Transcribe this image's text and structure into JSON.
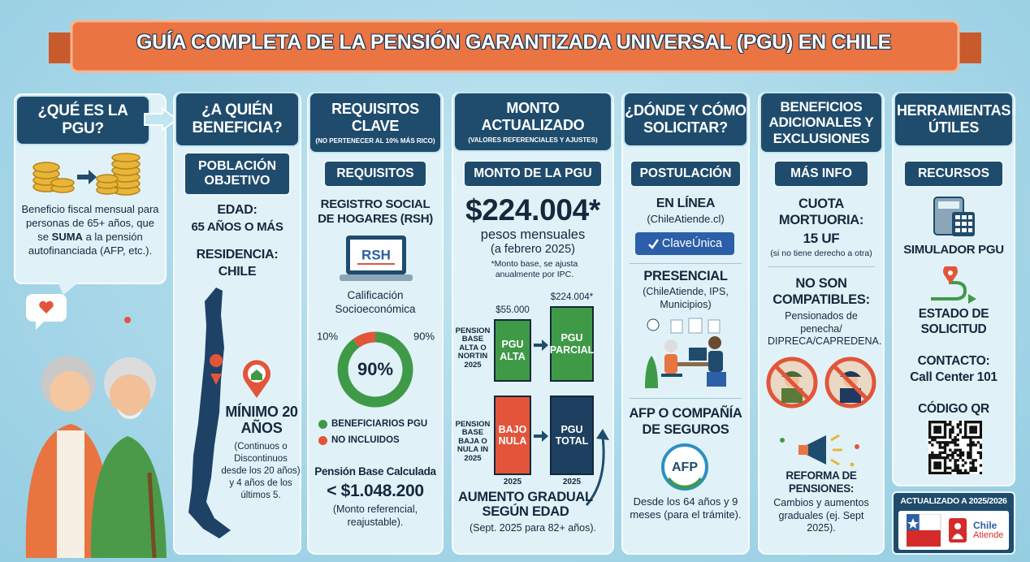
{
  "title": "GUÍA COMPLETA DE LA PENSIÓN GARANTIZADA UNIVERSAL (PGU) EN CHILE",
  "que_es": {
    "header": "¿QUÉ ES LA PGU?",
    "text_before": "Beneficio fiscal mensual para personas de 65+ años, que se",
    "text_emphasis": "SUMA",
    "text_after": "a la pensión autofinanciada (AFP, etc.)."
  },
  "a_quien": {
    "header": "¿A QUIÉN BENEFICIA?",
    "subheader": "POBLACIÓN OBJETIVO",
    "edad_label": "EDAD:",
    "edad_value": "65 AÑOS O MÁS",
    "residencia_label": "RESIDENCIA:",
    "residencia_value": "CHILE",
    "minimo": "MÍNIMO 20 AÑOS",
    "minimo_detail": "(Continuos o Discontinuos desde los 20 años) y 4 años de los últimos 5."
  },
  "requisitos": {
    "header": "REQUISITOS CLAVE",
    "note": "(NO PERTENECER AL 10% MÁS RICO)",
    "subheader": "REQUISITOS",
    "registro": "REGISTRO SOCIAL DE HOGARES (RSH)",
    "laptop_label": "RSH",
    "calificacion": "Calificación Socioeconómica",
    "chart": {
      "type": "donut",
      "center_label": "90%",
      "series": [
        {
          "name": "BENEFICIARIOS PGU",
          "color": "#3f9a48",
          "value": 90,
          "value_label": "90%"
        },
        {
          "name": "NO INCLUIDOS",
          "color": "#e2553a",
          "value": 10,
          "value_label": "10%"
        }
      ]
    },
    "pension_base": "Pensión Base Calculada",
    "pension_amount": "< $1.048.200",
    "pension_note": "(Monto referencial, reajustable)."
  },
  "monto": {
    "header": "MONTO ACTUALIZADO",
    "note": "(VALORES REFERENCIALES Y AJUSTES)",
    "subheader": "MONTO DE LA PGU",
    "amount": "$224.004*",
    "unit": "pesos mensuales",
    "date": "(a febrero 2025)",
    "footnote": "*Monto base, se ajusta anualmente por IPC.",
    "scenarios": [
      {
        "label": "PENSION BASE ALTA O NORTIN 2025",
        "bars": [
          {
            "top": "$55.000",
            "text": "PGU ALTA",
            "color": "#3f9a48"
          },
          {
            "top": "$224.004*",
            "text": "PGU PARCIAL",
            "color": "#3f9a48"
          }
        ]
      },
      {
        "label": "PENSION BASE BAJA O NULA IN 2025",
        "bars": [
          {
            "text": "BAJO NULA",
            "bottom": "2025",
            "color": "#e2553a"
          },
          {
            "text": "PGU TOTAL",
            "bottom": "2025",
            "color": "#1e4060"
          }
        ]
      }
    ],
    "aumento": "AUMENTO GRADUAL SEGÚN EDAD",
    "aumento_note": "(Sept. 2025 para 82+ años)."
  },
  "solicitar": {
    "header": "¿DÓNDE Y CÓMO SOLICITAR?",
    "subheader": "POSTULACIÓN",
    "online": "EN LÍNEA",
    "online_site": "(ChileAtiende.cl)",
    "button": "ClaveÚnica",
    "presencial": "PRESENCIAL",
    "presencial_places": "(ChileAtiende, IPS, Municipios)",
    "afp": "AFP O COMPAÑÍA DE SEGUROS",
    "afp_logo": "AFP",
    "afp_note": "Desde los 64 años y 9 meses (para el trámite)."
  },
  "beneficios": {
    "header": "BENEFICIOS ADICIONALES Y EXCLUSIONES",
    "subheader": "MÁS INFO",
    "cuota_label": "CUOTA MORTUORIA:",
    "cuota_value": "15 UF",
    "cuota_note": "(si no tiene derecho a otra)",
    "no_compatibles": "NO SON COMPATIBLES:",
    "no_compatibles_detail": "Pensionados de penecha/ DIPRECA/CAPREDENA.",
    "reforma": "REFORMA DE PENSIONES:",
    "reforma_detail": "Cambios y aumentos graduales (ej. Sept 2025)."
  },
  "herramientas": {
    "header": "HERRAMIENTAS ÚTILES",
    "subheader": "RECURSOS",
    "simulador": "SIMULADOR PGU",
    "estado": "ESTADO DE SOLICITUD",
    "contacto_label": "CONTACTO:",
    "contacto_value": "Call Center 101",
    "qr": "CÓDIGO QR"
  },
  "footer": {
    "updated": "ACTUALIZADO A 2025/2026",
    "logo_line1": "Chile",
    "logo_line2": "Atiende"
  }
}
